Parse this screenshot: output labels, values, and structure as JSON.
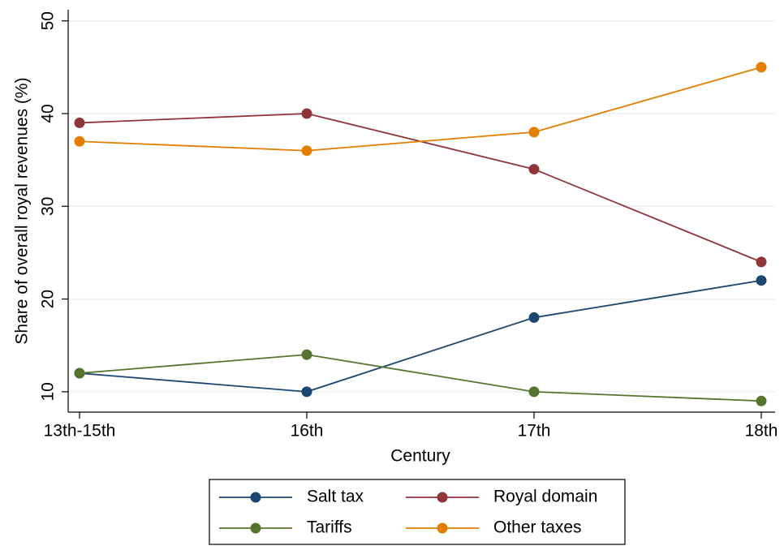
{
  "chart_data": {
    "type": "line",
    "x_label": "Century",
    "y_label": "Share of overall royal revenues (%)",
    "categories": [
      "13th-15th",
      "16th",
      "17th",
      "18th"
    ],
    "series": [
      {
        "name": "Salt tax",
        "color": "#1a476f",
        "values": [
          12,
          10,
          18,
          22
        ]
      },
      {
        "name": "Royal domain",
        "color": "#90353b",
        "values": [
          39,
          40,
          34,
          24
        ]
      },
      {
        "name": "Tariffs",
        "color": "#55752f",
        "values": [
          12,
          14,
          10,
          9
        ]
      },
      {
        "name": "Other taxes",
        "color": "#e37e00",
        "values": [
          37,
          36,
          38,
          45
        ]
      }
    ],
    "ylim": [
      7.8,
      51.2
    ],
    "yticks": [
      10,
      20,
      30,
      40,
      50
    ],
    "grid": true,
    "legend": "bottom"
  }
}
